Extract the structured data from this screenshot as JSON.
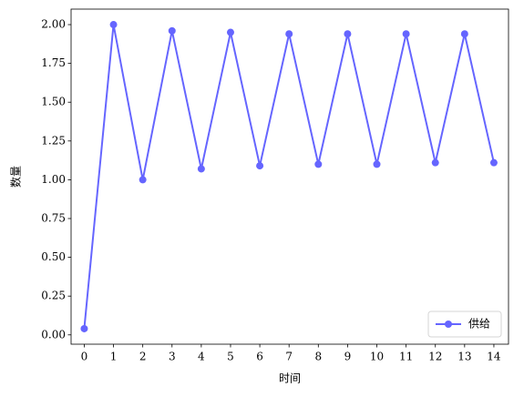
{
  "chart_data": {
    "type": "line",
    "x": [
      0,
      1,
      2,
      3,
      4,
      5,
      6,
      7,
      8,
      9,
      10,
      11,
      12,
      13,
      14
    ],
    "series": [
      {
        "name": "供给",
        "color": "#0000ff",
        "values": [
          0.04,
          2.0,
          1.0,
          1.96,
          1.07,
          1.95,
          1.09,
          1.94,
          1.1,
          1.94,
          1.1,
          1.94,
          1.11,
          1.94,
          1.11
        ]
      }
    ],
    "xlabel": "时间",
    "ylabel": "数量",
    "xlim": [
      -0.45,
      14.5
    ],
    "ylim": [
      -0.06,
      2.1
    ],
    "xticks": [
      0,
      1,
      2,
      3,
      4,
      5,
      6,
      7,
      8,
      9,
      10,
      11,
      12,
      13,
      14
    ],
    "yticks": [
      {
        "value": 0,
        "label": "0.00"
      },
      {
        "value": 0.25,
        "label": "0.25"
      },
      {
        "value": 0.5,
        "label": "0.50"
      },
      {
        "value": 0.75,
        "label": "0.75"
      },
      {
        "value": 1.0,
        "label": "1.00"
      },
      {
        "value": 1.25,
        "label": "1.25"
      },
      {
        "value": 1.5,
        "label": "1.50"
      },
      {
        "value": 1.75,
        "label": "1.75"
      },
      {
        "value": 2.0,
        "label": "2.00"
      }
    ],
    "legend": "lower right",
    "grid": false
  }
}
